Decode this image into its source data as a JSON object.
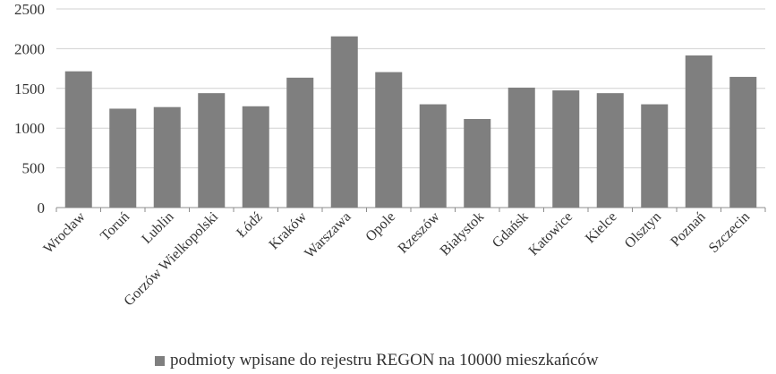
{
  "chart_data": {
    "type": "bar",
    "categories": [
      "Wrocław",
      "Toruń",
      "Lublin",
      "Gorzów Wielkopolski",
      "Łódź",
      "Kraków",
      "Warszawa",
      "Opole",
      "Rzeszów",
      "Białystok",
      "Gdańsk",
      "Katowice",
      "Kielce",
      "Olsztyn",
      "Poznań",
      "Szczecin"
    ],
    "series": [
      {
        "name": "podmioty wpisane do rejestru REGON na 10000 mieszkańców",
        "values": [
          1715,
          1245,
          1265,
          1440,
          1275,
          1635,
          2155,
          1705,
          1300,
          1115,
          1510,
          1475,
          1440,
          1300,
          1915,
          1645
        ],
        "color": "#7f7f7f"
      }
    ],
    "ylim": [
      0,
      2500
    ],
    "yticks": [
      "0",
      "500",
      "1000",
      "1500",
      "2000",
      "2500"
    ],
    "grid": true,
    "legend_position": "bottom"
  }
}
